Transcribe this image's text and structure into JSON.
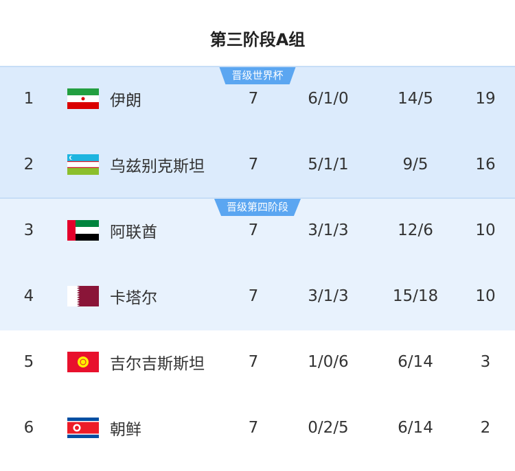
{
  "title": "第三阶段A组",
  "zones": [
    {
      "label": "晋级世界杯",
      "color": "#5ba6f1"
    },
    {
      "label": "晋级第四阶段",
      "color": "#5ba6f1"
    }
  ],
  "rows": [
    {
      "rank": "1",
      "flag": "iran-flag",
      "team": "伊朗",
      "played": "7",
      "wdl": "6/1/0",
      "goals": "14/5",
      "points": "19"
    },
    {
      "rank": "2",
      "flag": "uzbekistan-flag",
      "team": "乌兹别克斯坦",
      "played": "7",
      "wdl": "5/1/1",
      "goals": "9/5",
      "points": "16"
    },
    {
      "rank": "3",
      "flag": "uae-flag",
      "team": "阿联酋",
      "played": "7",
      "wdl": "3/1/3",
      "goals": "12/6",
      "points": "10"
    },
    {
      "rank": "4",
      "flag": "qatar-flag",
      "team": "卡塔尔",
      "played": "7",
      "wdl": "3/1/3",
      "goals": "15/18",
      "points": "10"
    },
    {
      "rank": "5",
      "flag": "kyrgyzstan-flag",
      "team": "吉尔吉斯斯坦",
      "played": "7",
      "wdl": "1/0/6",
      "goals": "6/14",
      "points": "3"
    },
    {
      "rank": "6",
      "flag": "north-korea-flag",
      "team": "朝鲜",
      "played": "7",
      "wdl": "0/2/5",
      "goals": "6/14",
      "points": "2"
    }
  ]
}
